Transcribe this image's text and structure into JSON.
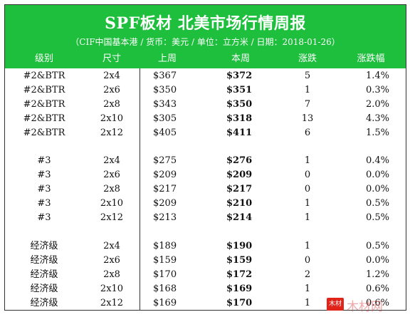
{
  "title": "SPF板材 北美市场行情周报",
  "subtitle": "（CIF中国基本港 / 货币：美元  / 单位：立方米 / 日期：2018-01-26）",
  "columns": [
    "级别",
    "尺寸",
    "上周",
    "本周",
    "涨跌",
    "涨跌幅"
  ],
  "rows": [
    {
      "grade": "#2&BTR",
      "size": "2x4",
      "last": "$367",
      "this": "$372",
      "chg": "5",
      "pct": "1.4%"
    },
    {
      "grade": "#2&BTR",
      "size": "2x6",
      "last": "$350",
      "this": "$351",
      "chg": "1",
      "pct": "0.3%"
    },
    {
      "grade": "#2&BTR",
      "size": "2x8",
      "last": "$343",
      "this": "$350",
      "chg": "7",
      "pct": "2.0%"
    },
    {
      "grade": "#2&BTR",
      "size": "2x10",
      "last": "$305",
      "this": "$318",
      "chg": "13",
      "pct": "4.3%"
    },
    {
      "grade": "#2&BTR",
      "size": "2x12",
      "last": "$405",
      "this": "$411",
      "chg": "6",
      "pct": "1.5%"
    },
    {
      "grade": "#3",
      "size": "2x4",
      "last": "$275",
      "this": "$276",
      "chg": "1",
      "pct": "0.4%"
    },
    {
      "grade": "#3",
      "size": "2x6",
      "last": "$209",
      "this": "$209",
      "chg": "0",
      "pct": "0.0%"
    },
    {
      "grade": "#3",
      "size": "2x8",
      "last": "$217",
      "this": "$217",
      "chg": "0",
      "pct": "0.0%"
    },
    {
      "grade": "#3",
      "size": "2x10",
      "last": "$209",
      "this": "$210",
      "chg": "1",
      "pct": "0.5%"
    },
    {
      "grade": "#3",
      "size": "2x12",
      "last": "$213",
      "this": "$214",
      "chg": "1",
      "pct": "0.5%"
    },
    {
      "grade": "经济级",
      "size": "2x4",
      "last": "$189",
      "this": "$190",
      "chg": "1",
      "pct": "0.5%"
    },
    {
      "grade": "经济级",
      "size": "2x6",
      "last": "$159",
      "this": "$159",
      "chg": "0",
      "pct": "0.0%"
    },
    {
      "grade": "经济级",
      "size": "2x8",
      "last": "$170",
      "this": "$172",
      "chg": "2",
      "pct": "1.2%"
    },
    {
      "grade": "经济级",
      "size": "2x10",
      "last": "$168",
      "this": "$169",
      "chg": "1",
      "pct": "0.6%"
    },
    {
      "grade": "经济级",
      "size": "2x12",
      "last": "$169",
      "this": "$170",
      "chg": "1",
      "pct": "0.6%"
    }
  ],
  "watermark": {
    "badge": "木材",
    "text": "木材网"
  },
  "colors": {
    "banner": "#1dbf3c",
    "watermark_red": "#e2231a"
  }
}
